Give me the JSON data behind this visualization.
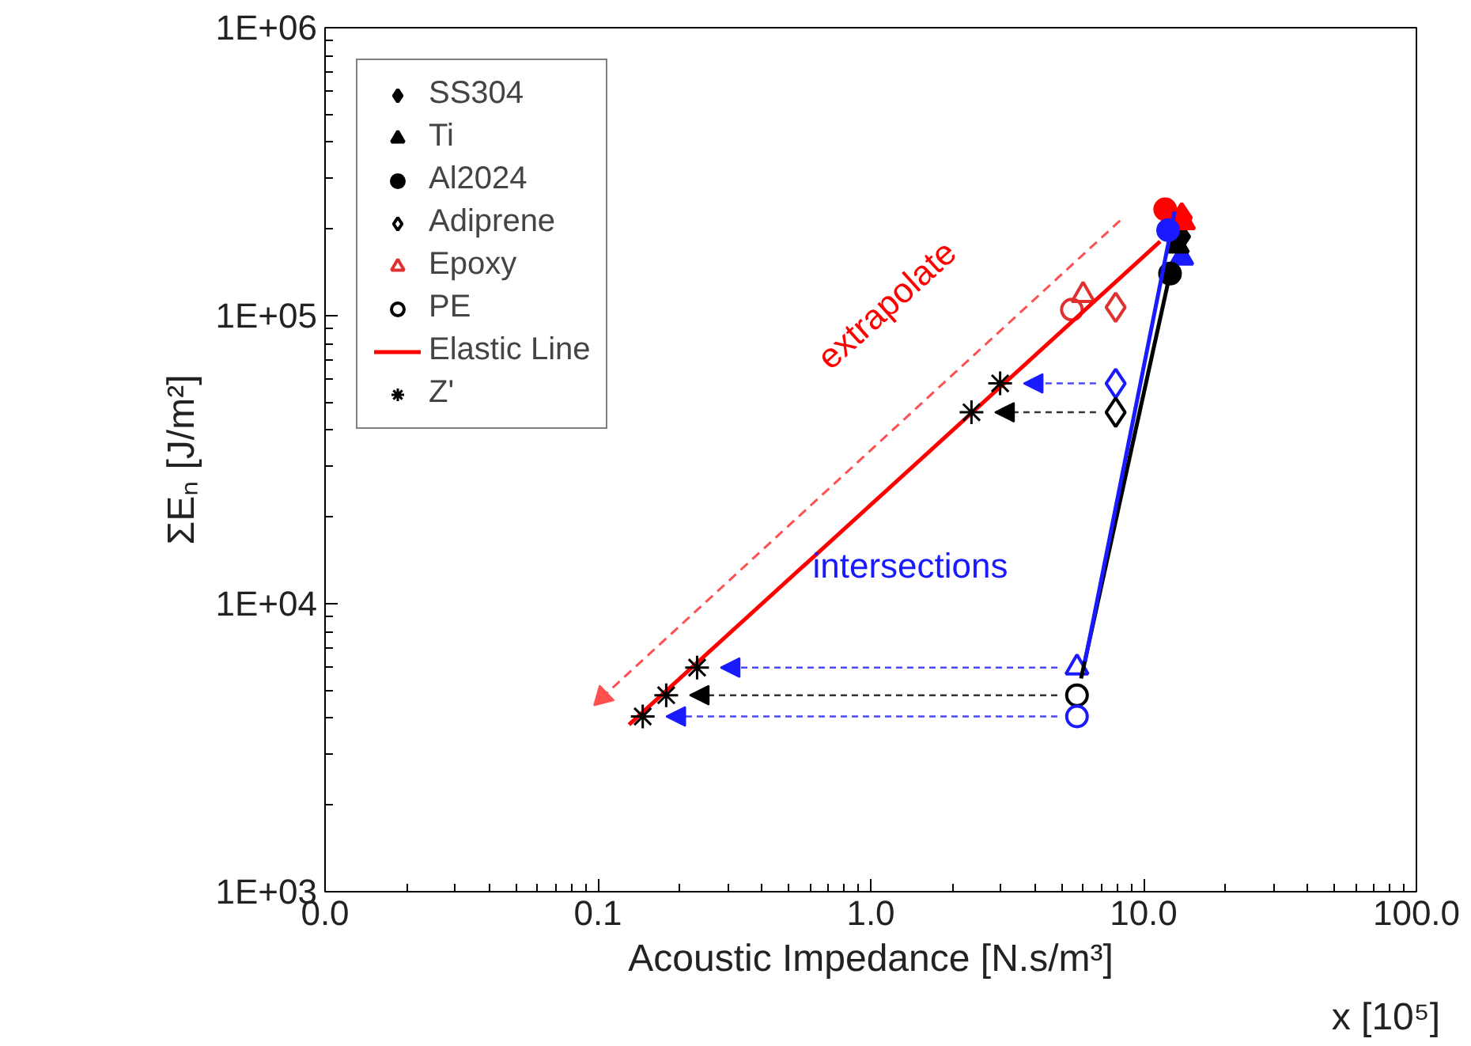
{
  "chart_data": {
    "type": "scatter",
    "xlabel": "Acoustic Impedance [N.s/m³]",
    "ylabel": "ΣEₙ [J/m²]",
    "log": "xy",
    "grid": false,
    "legend": "top left",
    "xlim": [
      0.01,
      100
    ],
    "ylim": [
      1000,
      1000000
    ],
    "xticks": [
      {
        "value": 0.01,
        "label": "0.0"
      },
      {
        "value": 0.1,
        "label": "0.1"
      },
      {
        "value": 1,
        "label": "1.0"
      },
      {
        "value": 10,
        "label": "10.0"
      },
      {
        "value": 100,
        "label": "100.0"
      }
    ],
    "yticks": [
      {
        "value": 1000,
        "label": "1E+03"
      },
      {
        "value": 10000,
        "label": "1E+04"
      },
      {
        "value": 100000,
        "label": "1E+05"
      },
      {
        "value": 1000000,
        "label": "1E+06"
      }
    ],
    "series": [
      {
        "name": "SS304",
        "marker": "diamond",
        "color": "#000000",
        "colors": [
          "#ff0000",
          "#000000"
        ],
        "x": [
          13.8,
          13.6
        ],
        "values": [
          219000,
          188000
        ]
      },
      {
        "name": "Ti",
        "marker": "triangle",
        "color": "#000000",
        "colors": [
          "#ff0000",
          "#1a1aff",
          "#000000"
        ],
        "x": [
          14.0,
          13.8,
          13.3
        ],
        "values": [
          211000,
          159000,
          175000
        ]
      },
      {
        "name": "Al2024",
        "marker": "circle",
        "color": "#000000",
        "colors": [
          "#ff0000",
          "#1a1aff",
          "#000000"
        ],
        "x": [
          12.0,
          12.3,
          12.5
        ],
        "values": [
          234000,
          198000,
          140000
        ]
      },
      {
        "name": "Adiprene",
        "marker": "diamond",
        "color": "#000000",
        "colors": [
          "#e03030",
          "#1a1aff",
          "#000000"
        ],
        "x": [
          7.9,
          7.9,
          7.9
        ],
        "values": [
          107000,
          58200,
          46200
        ]
      },
      {
        "name": "Epoxy",
        "marker": "triangle",
        "color": "#000000",
        "colors": [
          "#e03030",
          "#1a1aff"
        ],
        "x": [
          6.0,
          5.7
        ],
        "values": [
          118000,
          6000
        ]
      },
      {
        "name": "PE",
        "marker": "circle",
        "color": "#000000",
        "colors": [
          "#e03030",
          "#000000",
          "#1a1aff"
        ],
        "x": [
          5.46,
          5.7,
          5.7
        ],
        "values": [
          105000,
          4810,
          4060
        ]
      },
      {
        "name": "Elastic Line",
        "type": "line",
        "line_style": "solid",
        "color": "#ff0000",
        "x": [
          0.13,
          11.5
        ],
        "values": [
          3800,
          181000
        ]
      },
      {
        "name": "Z'",
        "marker": "cross",
        "color": "#000000",
        "x": [
          0.146,
          0.178,
          0.231,
          2.34,
          2.98
        ],
        "values": [
          4060,
          4810,
          6000,
          46200,
          58200
        ]
      },
      {
        "type": "line",
        "line_style": "solid",
        "color": "#000000",
        "x": [
          12.5,
          5.9
        ],
        "values": [
          140000,
          5500
        ]
      },
      {
        "type": "line",
        "line_style": "solid",
        "color": "#1a1aff",
        "x": [
          13.0,
          6.1
        ],
        "values": [
          230000,
          6300
        ]
      },
      {
        "type": "line",
        "line_style": "dashed",
        "marker": "triangle",
        "color": "#ff5050",
        "x": [
          8.2,
          0.104
        ],
        "values": [
          214000,
          4740
        ]
      }
    ],
    "annotations": [
      "extrapolate",
      "intersections",
      "x [10⁵]"
    ]
  }
}
